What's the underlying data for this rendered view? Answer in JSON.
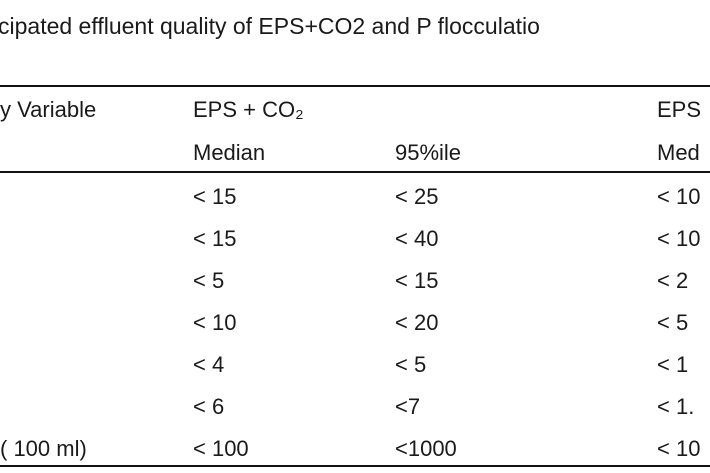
{
  "title": "cipated effluent quality of EPS+CO2 and P flocculatio",
  "table": {
    "header": {
      "variable": "y Variable",
      "group1": "EPS + CO₂",
      "group2": "EPS",
      "stats": [
        "Median",
        "95%ile",
        "Med"
      ]
    },
    "rows": [
      {
        "cells": [
          "< 15",
          "< 25",
          "< 10"
        ]
      },
      {
        "cells": [
          "< 15",
          "< 40",
          "< 10"
        ]
      },
      {
        "cells": [
          "< 5",
          "< 15",
          "< 2"
        ]
      },
      {
        "cells": [
          "< 10",
          "< 20",
          "< 5"
        ]
      },
      {
        "cells": [
          "< 4",
          "< 5",
          "< 1"
        ]
      },
      {
        "cells": [
          "< 6",
          "<7",
          "< 1."
        ]
      },
      {
        "label": "( 100 ml)",
        "cells": [
          "< 100",
          "<1000",
          "< 10"
        ]
      }
    ]
  }
}
